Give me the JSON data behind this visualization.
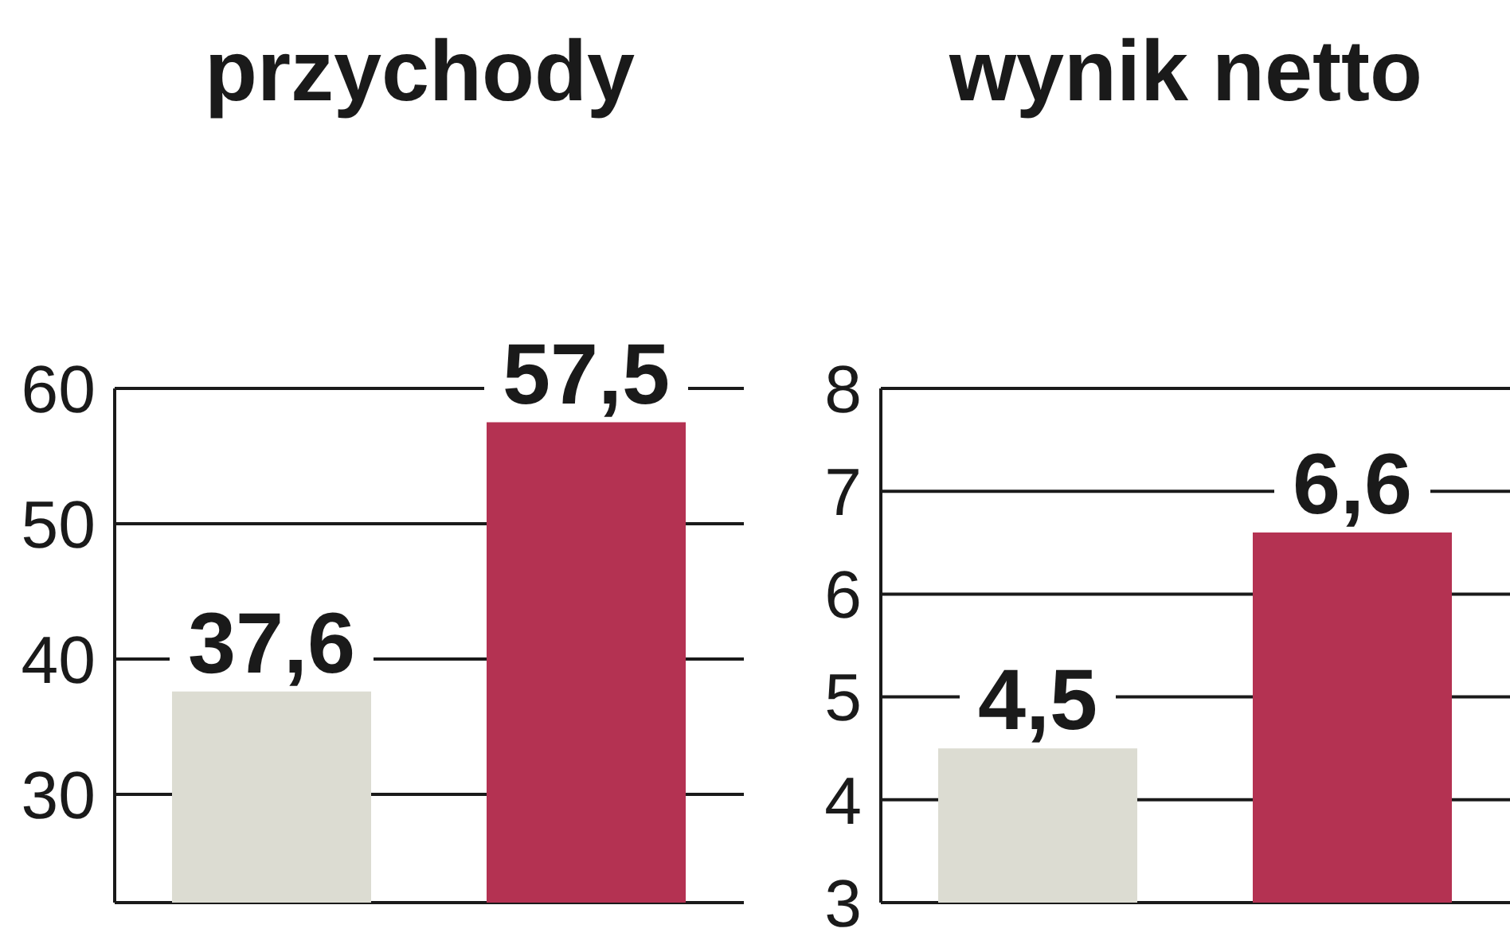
{
  "chart_data": [
    {
      "type": "bar",
      "title": "przychody",
      "categories": [
        null,
        null
      ],
      "values": [
        37.6,
        57.5
      ],
      "colors": [
        "#dcdcd2",
        "#b43252"
      ],
      "value_labels": [
        "37,6",
        "57,5"
      ],
      "ylim": [
        22,
        60
      ],
      "yticks": [
        30,
        40,
        50,
        60
      ],
      "grid": "y",
      "legend": false
    },
    {
      "type": "bar",
      "title": "wynik netto",
      "categories": [
        null,
        null
      ],
      "values": [
        4.5,
        6.6
      ],
      "colors": [
        "#dcdcd2",
        "#b43252"
      ],
      "value_labels": [
        "4,5",
        "6,6"
      ],
      "ylim": [
        3,
        8
      ],
      "yticks": [
        3,
        4,
        5,
        6,
        7,
        8
      ],
      "grid": "y",
      "legend": false
    }
  ]
}
